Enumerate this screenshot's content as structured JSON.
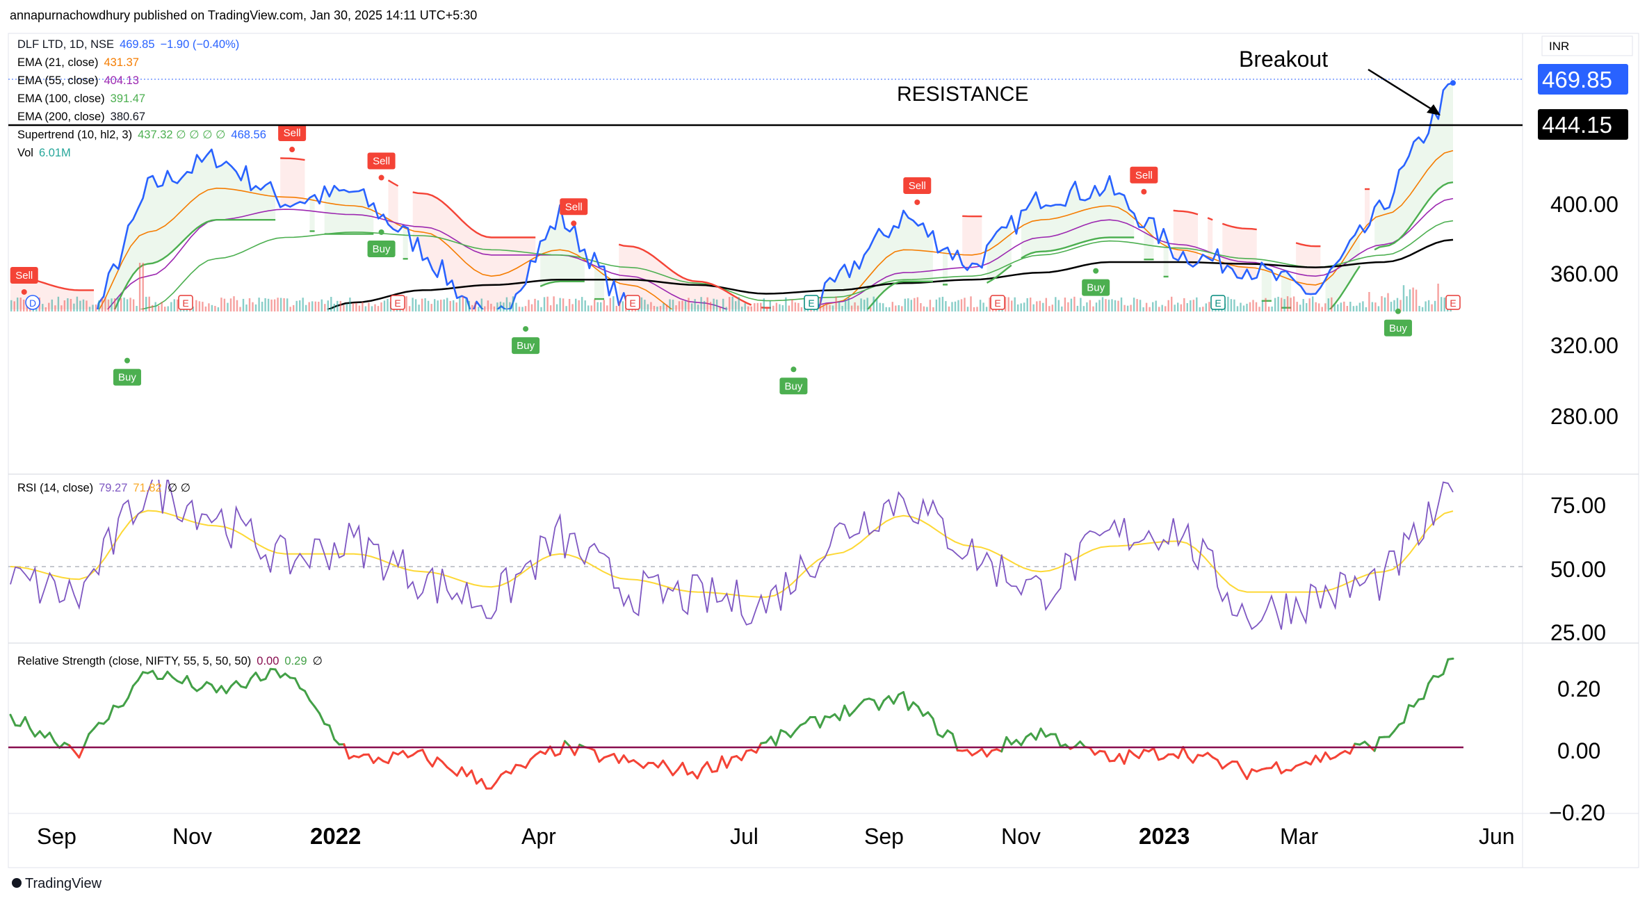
{
  "header": {
    "published_text": "annapurnachowdhury published on TradingView.com, Jan 30, 2025 14:11 UTC+5:30"
  },
  "footer": {
    "brand": "TradingView"
  },
  "legend": {
    "symbol": "DLF LTD, 1D, NSE",
    "last": "469.85",
    "change": "−1.90 (−0.40%)",
    "ema21_label": "EMA (21, close)",
    "ema21_value": "431.37",
    "ema55_label": "EMA (55, close)",
    "ema55_value": "404.13",
    "ema100_label": "EMA (100, close)",
    "ema100_value": "391.47",
    "ema200_label": "EMA (200, close)",
    "ema200_value": "380.67",
    "supertrend_label": "Supertrend (10, hl2, 3)",
    "supertrend_values": "437.32  ∅  ∅  ∅  ∅",
    "supertrend_value2": "468.56",
    "vol_label": "Vol",
    "vol_value": "6.01M",
    "rsi_label": "RSI (14, close)",
    "rsi_value": "79.27",
    "rsi_ma": "71.82",
    "rsi_extra": "∅  ∅",
    "rs_label": "Relative Strength (close, NIFTY, 55, 5, 50, 50)",
    "rs_value1": "0.00",
    "rs_value2": "0.29",
    "rs_extra": "∅"
  },
  "annotations": {
    "resistance": "RESISTANCE",
    "breakout": "Breakout"
  },
  "price_axis": {
    "currency": "INR",
    "last_price_label": "469.85",
    "resistance_price_label": "444.15",
    "ticks": [
      "400.00",
      "360.00",
      "320.00",
      "280.00"
    ]
  },
  "rsi_axis": {
    "ticks": [
      "75.00",
      "50.00",
      "25.00"
    ]
  },
  "rs_axis": {
    "ticks": [
      "0.20",
      "0.00",
      "−0.20"
    ]
  },
  "time_axis": {
    "labels": [
      {
        "text": "Sep",
        "bold": false
      },
      {
        "text": "Nov",
        "bold": false
      },
      {
        "text": "2022",
        "bold": true
      },
      {
        "text": "Apr",
        "bold": false
      },
      {
        "text": "Jul",
        "bold": false
      },
      {
        "text": "Sep",
        "bold": false
      },
      {
        "text": "Nov",
        "bold": false
      },
      {
        "text": "2023",
        "bold": true
      },
      {
        "text": "Mar",
        "bold": false
      },
      {
        "text": "Jun",
        "bold": false
      }
    ]
  },
  "signals": [
    {
      "type": "Sell",
      "date": "Aug 2021",
      "price": 351
    },
    {
      "type": "Buy",
      "date": "Sep 2021",
      "price": 312
    },
    {
      "type": "Sell",
      "date": "Dec 2021",
      "price": 432
    },
    {
      "type": "Sell",
      "date": "Jan 2022",
      "price": 416
    },
    {
      "type": "Buy",
      "date": "Jan 2022",
      "price": 385
    },
    {
      "type": "Buy",
      "date": "Mar 2022",
      "price": 330
    },
    {
      "type": "Sell",
      "date": "Apr 2022",
      "price": 390
    },
    {
      "type": "Buy",
      "date": "Jul 2022",
      "price": 307
    },
    {
      "type": "Sell",
      "date": "Sep 2022",
      "price": 402
    },
    {
      "type": "Buy",
      "date": "Nov 2022",
      "price": 363
    },
    {
      "type": "Sell",
      "date": "Dec 2022",
      "price": 408
    },
    {
      "type": "Buy",
      "date": "Apr 2023",
      "price": 340
    }
  ],
  "event_markers": [
    "D",
    "E",
    "E",
    "E",
    "E",
    "E",
    "E",
    "E"
  ],
  "colors": {
    "price_line": "#2962ff",
    "ema21": "#f57c00",
    "ema55": "#9c27b0",
    "ema100": "#4caf50",
    "ema200": "#000000",
    "supertrend_up": "#4caf50",
    "supertrend_down": "#f44336",
    "rsi": "#7e57c2",
    "rsi_ma": "#fdd835",
    "rs_up": "#43a047",
    "rs_down": "#f44336",
    "rs_zero": "#880e4f",
    "axis_label_bg": "#2962ff",
    "resistance_bg": "#000000"
  },
  "chart_data": [
    {
      "type": "line",
      "title": "DLF LTD, 1D, NSE",
      "x_range": [
        "Aug 2021",
        "Jun 2023"
      ],
      "ylim": [
        255,
        480
      ],
      "series": [
        {
          "name": "DLF LTD",
          "x": [
            "Aug 2021",
            "Sep 2021",
            "Oct 2021",
            "Nov 2021",
            "Dec 2021",
            "Jan 2022",
            "Feb 2022",
            "Mar 2022",
            "Apr 2022",
            "May 2022",
            "Jun 2022",
            "Jul 2022",
            "Aug 2022",
            "Sep 2022",
            "Oct 2022",
            "Nov 2022",
            "Dec 2022",
            "Jan 2023",
            "Feb 2023",
            "Mar 2023",
            "Apr 2023",
            "May 2023"
          ],
          "values": [
            330,
            315,
            410,
            428,
            402,
            408,
            375,
            330,
            395,
            340,
            325,
            315,
            355,
            395,
            365,
            405,
            410,
            373,
            365,
            350,
            400,
            469.85
          ]
        },
        {
          "name": "EMA (21, close)",
          "values": [
            338,
            330,
            385,
            410,
            405,
            400,
            385,
            360,
            375,
            355,
            335,
            320,
            345,
            375,
            372,
            392,
            400,
            375,
            365,
            355,
            395,
            431.37
          ]
        },
        {
          "name": "EMA (55, close)",
          "values": [
            335,
            330,
            360,
            392,
            398,
            395,
            388,
            372,
            372,
            360,
            345,
            335,
            345,
            362,
            365,
            382,
            392,
            378,
            368,
            360,
            378,
            404.13
          ]
        },
        {
          "name": "EMA (100, close)",
          "values": [
            305,
            310,
            342,
            370,
            382,
            385,
            383,
            375,
            372,
            365,
            356,
            346,
            348,
            358,
            360,
            372,
            380,
            376,
            370,
            365,
            372,
            391.47
          ]
        },
        {
          "name": "EMA (200, close)",
          "values": [
            275,
            282,
            298,
            315,
            332,
            345,
            352,
            355,
            358,
            358,
            355,
            350,
            352,
            356,
            358,
            362,
            368,
            368,
            367,
            365,
            368,
            380.67
          ]
        }
      ],
      "resistance_level": 444.15,
      "last_price": 469.85,
      "ema_values": {
        "ema21": 431.37,
        "ema55": 404.13,
        "ema100": 391.47,
        "ema200": 380.67
      },
      "supertrend": [
        437.32,
        468.56
      ],
      "volume_last": "6.01M"
    },
    {
      "type": "line",
      "title": "RSI (14, close)",
      "ylim": [
        20,
        90
      ],
      "series": [
        {
          "name": "RSI",
          "values": [
            45,
            38,
            82,
            70,
            52,
            60,
            45,
            35,
            62,
            40,
            38,
            35,
            62,
            78,
            55,
            40,
            62,
            65,
            30,
            38,
            45,
            79.27
          ]
        },
        {
          "name": "RSI MA",
          "values": [
            50,
            45,
            72,
            66,
            55,
            55,
            48,
            42,
            55,
            45,
            40,
            38,
            55,
            70,
            58,
            48,
            58,
            60,
            40,
            40,
            48,
            71.82
          ]
        }
      ]
    },
    {
      "type": "line",
      "title": "Relative Strength (close, NIFTY, 55, 5, 50, 50)",
      "ylim": [
        -0.2,
        0.3
      ],
      "series": [
        {
          "name": "Relative Strength",
          "values": [
            0.1,
            -0.01,
            0.25,
            0.18,
            0.25,
            -0.04,
            -0.03,
            -0.12,
            0.0,
            -0.05,
            -0.08,
            0.01,
            0.11,
            0.16,
            -0.03,
            0.05,
            -0.04,
            -0.01,
            -0.08,
            -0.04,
            0.02,
            0.29
          ]
        }
      ]
    }
  ]
}
